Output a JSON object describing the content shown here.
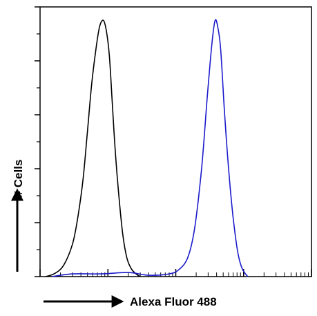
{
  "chart_data": {
    "type": "line",
    "title": "",
    "xlabel": "Alexa Fluor 488",
    "ylabel": "# Cells",
    "x_scale": "log",
    "xlim": [
      1,
      10000
    ],
    "ylim": [
      0,
      100
    ],
    "x_decades": [
      1,
      10,
      100,
      1000,
      10000
    ],
    "y_major_ticks": [
      0,
      20,
      40,
      60,
      80,
      100
    ],
    "y_minor_ticks": [
      10,
      30,
      50,
      70,
      90
    ],
    "legend": "none",
    "grid": false,
    "series": [
      {
        "color": "#000000",
        "x": [
          1.2,
          1.6,
          2.2,
          3.0,
          3.6,
          4.3,
          5.0,
          5.8,
          6.8,
          7.6,
          8.6,
          9.5,
          10.5,
          11.5,
          12.8,
          14.5,
          16.5,
          19.0,
          22.0,
          26.0,
          30.0
        ],
        "y": [
          0.0,
          1.0,
          4.0,
          12.0,
          22.0,
          36.0,
          54.0,
          72.0,
          86.0,
          93.0,
          95.0,
          91.0,
          82.0,
          66.0,
          47.0,
          30.0,
          16.0,
          7.0,
          3.0,
          1.0,
          0.0
        ]
      },
      {
        "color": "#1a1acc",
        "x": [
          1.5,
          3.0,
          8.0,
          20.0,
          40.0,
          80.0,
          110.0,
          150.0,
          190.0,
          240.0,
          290.0,
          340.0,
          380.0,
          420.0,
          460.0,
          520.0,
          600.0,
          700.0,
          820.0,
          950.0,
          1150.0
        ],
        "y": [
          0.0,
          1.0,
          1.0,
          1.5,
          0.5,
          1.0,
          2.5,
          7.0,
          18.0,
          40.0,
          66.0,
          86.0,
          95.0,
          92.0,
          84.0,
          62.0,
          40.0,
          22.0,
          9.0,
          3.0,
          0.0
        ]
      }
    ]
  }
}
